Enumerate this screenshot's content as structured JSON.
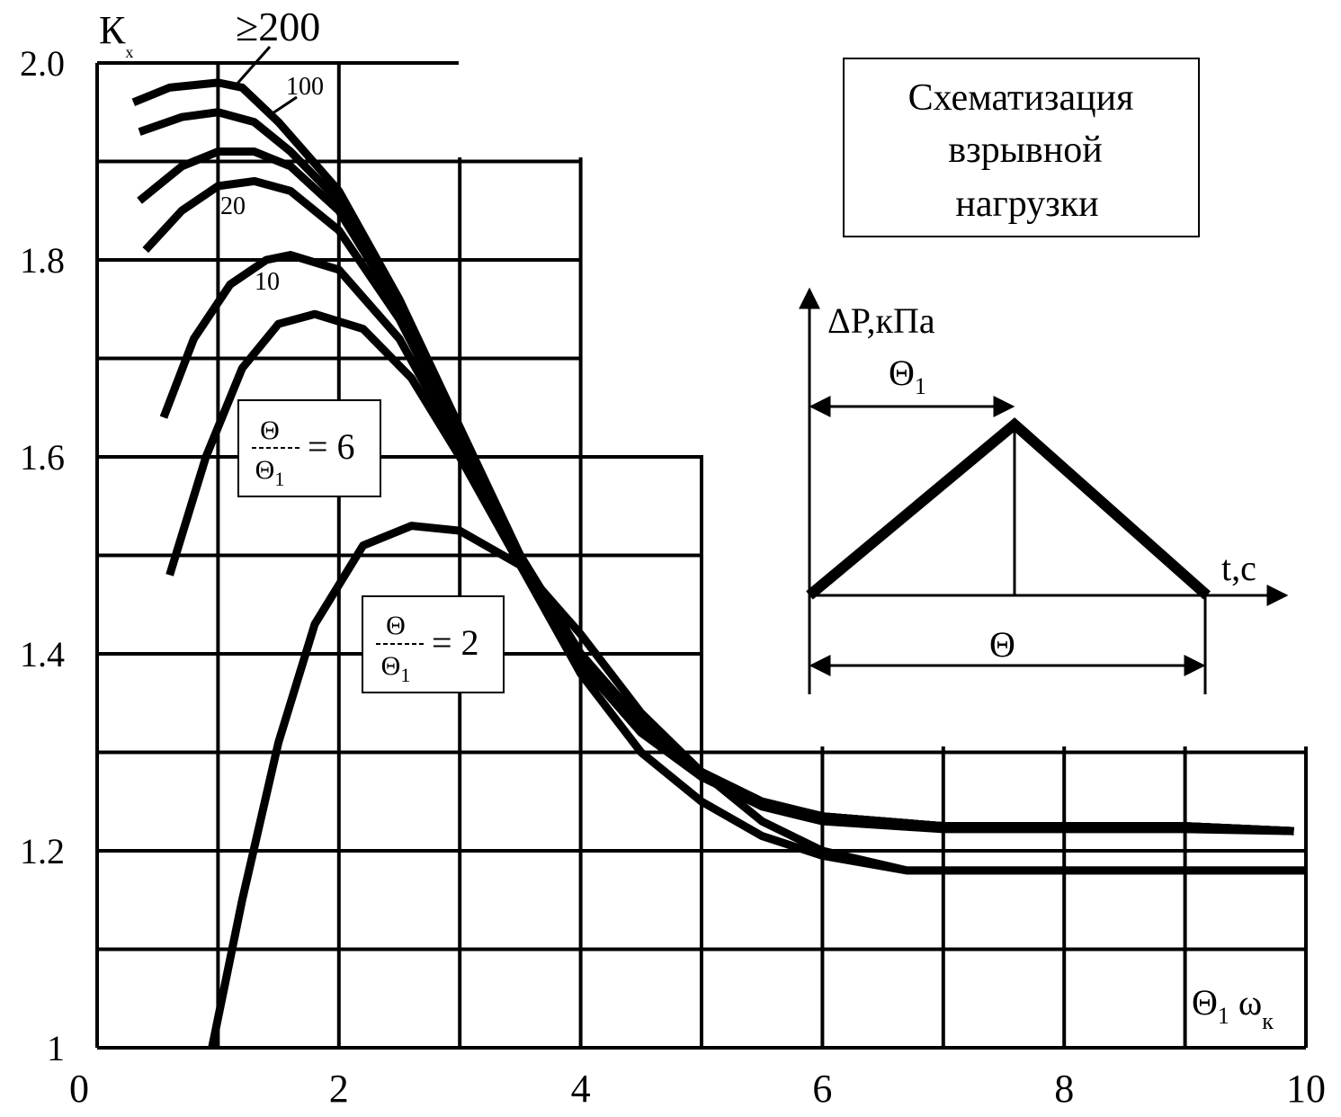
{
  "chart_data": {
    "type": "line",
    "y_label": [
      "К",
      "x"
    ],
    "x_label": [
      "Θ",
      "1",
      " ω",
      "к"
    ],
    "xlim": [
      0,
      10
    ],
    "ylim": [
      1,
      2
    ],
    "xticks": [
      0,
      2,
      4,
      6,
      8,
      10
    ],
    "yticks": [
      1,
      1.2,
      1.4,
      1.6,
      1.8,
      {
        "value": 2,
        "label": "2.0"
      }
    ],
    "xgrid": [
      0,
      1,
      2,
      3,
      4,
      5,
      6,
      7,
      8,
      9,
      10
    ],
    "ygrid": [
      1,
      1.1,
      1.2,
      1.3,
      1.4,
      1.5,
      1.6,
      1.7,
      1.8,
      1.9,
      2
    ],
    "grid": true,
    "color": "#000000",
    "series": [
      {
        "name": "≥200",
        "x": [
          0.3,
          0.6,
          1.0,
          1.2,
          1.5,
          2.0,
          2.5,
          3.0,
          3.5,
          4.0,
          4.5,
          5.0,
          5.5,
          6.0,
          7.0,
          8.0,
          9.0,
          9.9
        ],
        "values": [
          1.96,
          1.975,
          1.98,
          1.975,
          1.94,
          1.87,
          1.76,
          1.63,
          1.5,
          1.4,
          1.33,
          1.28,
          1.25,
          1.235,
          1.225,
          1.225,
          1.225,
          1.22
        ]
      },
      {
        "name": "100",
        "x": [
          0.35,
          0.7,
          1.0,
          1.3,
          1.6,
          2.0,
          2.5,
          3.0,
          3.5,
          4.0,
          4.5,
          5.0,
          5.5,
          6.0,
          7.0,
          8.0,
          9.0,
          9.9
        ],
        "values": [
          1.93,
          1.945,
          1.95,
          1.94,
          1.91,
          1.86,
          1.755,
          1.63,
          1.5,
          1.4,
          1.33,
          1.28,
          1.25,
          1.235,
          1.225,
          1.225,
          1.225,
          1.22
        ]
      },
      {
        "x": [
          0.35,
          0.7,
          1.0,
          1.3,
          1.6,
          2.0,
          2.5,
          3.0,
          3.5,
          4.0,
          4.5,
          5.0,
          5.5,
          6.0,
          7.0,
          8.0,
          9.0,
          9.9
        ],
        "values": [
          1.86,
          1.895,
          1.91,
          1.91,
          1.895,
          1.85,
          1.75,
          1.625,
          1.5,
          1.4,
          1.33,
          1.28,
          1.25,
          1.235,
          1.225,
          1.225,
          1.225,
          1.22
        ]
      },
      {
        "name": "20",
        "x": [
          0.4,
          0.7,
          1.0,
          1.3,
          1.6,
          2.0,
          2.5,
          3.0,
          3.5,
          4.0,
          4.5,
          5.0,
          5.5,
          6.0,
          7.0,
          8.0,
          9.0,
          9.9
        ],
        "values": [
          1.81,
          1.85,
          1.875,
          1.88,
          1.87,
          1.83,
          1.74,
          1.62,
          1.5,
          1.4,
          1.33,
          1.28,
          1.25,
          1.235,
          1.225,
          1.225,
          1.225,
          1.22
        ]
      },
      {
        "name": "10",
        "x": [
          0.55,
          0.8,
          1.1,
          1.4,
          1.6,
          2.0,
          2.5,
          3.0,
          3.5,
          4.0,
          4.5,
          5.0,
          5.5,
          6.0,
          7.0,
          8.0,
          9.0,
          9.9
        ],
        "values": [
          1.64,
          1.72,
          1.775,
          1.8,
          1.805,
          1.79,
          1.72,
          1.61,
          1.49,
          1.39,
          1.32,
          1.275,
          1.245,
          1.23,
          1.222,
          1.222,
          1.222,
          1.22
        ]
      },
      {
        "name": "= 6",
        "x": [
          0.6,
          0.9,
          1.2,
          1.5,
          1.8,
          2.2,
          2.6,
          3.0,
          3.5,
          4.0,
          4.5,
          5.0,
          5.5,
          6.0,
          6.7,
          8.0,
          9.0,
          10.0
        ],
        "values": [
          1.48,
          1.6,
          1.69,
          1.735,
          1.745,
          1.73,
          1.68,
          1.6,
          1.49,
          1.38,
          1.3,
          1.25,
          1.215,
          1.195,
          1.18,
          1.18,
          1.18,
          1.18
        ]
      },
      {
        "name": "= 2",
        "x": [
          0.95,
          1.2,
          1.5,
          1.8,
          2.2,
          2.6,
          3.0,
          3.5,
          4.0,
          4.5,
          5.0,
          5.5,
          6.0,
          6.7,
          8.0,
          10.0
        ],
        "values": [
          1.0,
          1.15,
          1.31,
          1.43,
          1.51,
          1.53,
          1.525,
          1.49,
          1.42,
          1.34,
          1.28,
          1.23,
          1.2,
          1.18,
          1.18,
          1.18
        ]
      }
    ],
    "ratio": {
      "numerator": "Θ",
      "denominator": "Θ",
      "subscript": "1"
    },
    "inset": {
      "title": [
        "Схематизация",
        "взрывной",
        "нагрузки"
      ],
      "y_label": "ΔP,кПа",
      "x_label": "t,c",
      "rise": [
        "Θ",
        "1"
      ],
      "duration": "Θ"
    }
  }
}
